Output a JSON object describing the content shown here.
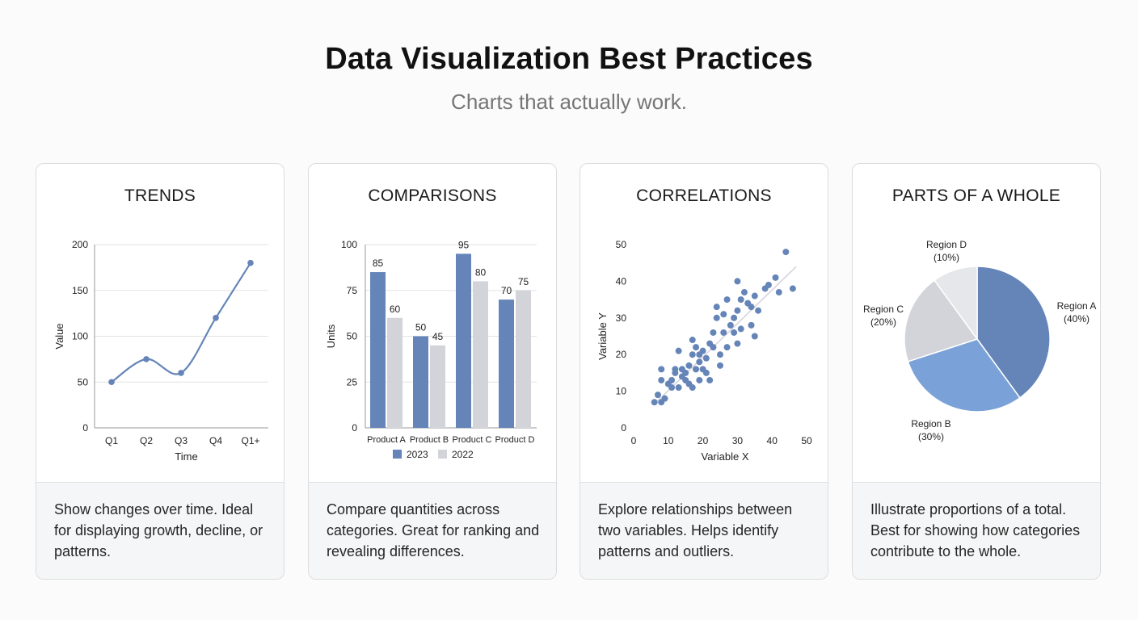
{
  "title": "Data Visualization Best Practices",
  "subtitle": "Charts that actually work.",
  "colors": {
    "primary": "#6585b9",
    "secondary": "#d2d4d9",
    "pie_a": "#6585b9",
    "pie_b": "#7ba2d8",
    "pie_c": "#d2d4d9",
    "pie_d": "#e6e7ea",
    "gridline": "#e3e3e3",
    "axis": "#9a9a9a"
  },
  "cards": [
    {
      "title": "TRENDS",
      "description": "Show changes over time. Ideal for displaying growth, decline, or patterns."
    },
    {
      "title": "COMPARISONS",
      "description": "Compare quantities across categories. Great for ranking and revealing differences."
    },
    {
      "title": "CORRELATIONS",
      "description": "Explore relationships between two variables. Helps identify patterns and outliers."
    },
    {
      "title": "PARTS OF A WHOLE",
      "description": "Illustrate proportions of a total. Best for showing how categories contribute to the whole."
    }
  ],
  "chart_data": [
    {
      "type": "line",
      "title": "",
      "categories": [
        "Q1",
        "Q2",
        "Q3",
        "Q4",
        "Q1+"
      ],
      "series": [
        {
          "values": [
            50,
            75,
            60,
            120,
            180
          ]
        }
      ],
      "xlabel": "Time",
      "ylabel": "Value",
      "ylim": [
        0,
        200
      ],
      "yticks": [
        0,
        50,
        100,
        150,
        200
      ],
      "grid": true
    },
    {
      "type": "bar",
      "title": "",
      "categories": [
        "Product A",
        "Product B",
        "Product C",
        "Product D"
      ],
      "series": [
        {
          "name": "2023",
          "values": [
            85,
            50,
            95,
            70
          ]
        },
        {
          "name": "2022",
          "values": [
            60,
            45,
            80,
            75
          ]
        }
      ],
      "xlabel": "",
      "ylabel": "Units",
      "ylim": [
        0,
        100
      ],
      "yticks": [
        0,
        25,
        50,
        75,
        100
      ],
      "grid": true,
      "legend": "bottom"
    },
    {
      "type": "scatter",
      "title": "",
      "xlabel": "Variable X",
      "ylabel": "Variable Y",
      "xlim": [
        0,
        50
      ],
      "ylim": [
        0,
        50
      ],
      "xticks": [
        0,
        10,
        20,
        30,
        40,
        50
      ],
      "yticks": [
        0,
        10,
        20,
        30,
        40,
        50
      ],
      "trendline": true,
      "grid": false,
      "points": [
        [
          6,
          7
        ],
        [
          7,
          9
        ],
        [
          8,
          7
        ],
        [
          9,
          8
        ],
        [
          8,
          13
        ],
        [
          10,
          12
        ],
        [
          11,
          13
        ],
        [
          11,
          11
        ],
        [
          12,
          15
        ],
        [
          13,
          11
        ],
        [
          12,
          16
        ],
        [
          14,
          14
        ],
        [
          14,
          16
        ],
        [
          15,
          15
        ],
        [
          13,
          21
        ],
        [
          16,
          17
        ],
        [
          16,
          12
        ],
        [
          17,
          11
        ],
        [
          17,
          20
        ],
        [
          18,
          22
        ],
        [
          18,
          16
        ],
        [
          19,
          20
        ],
        [
          19,
          18
        ],
        [
          20,
          21
        ],
        [
          21,
          19
        ],
        [
          21,
          15
        ],
        [
          22,
          23
        ],
        [
          22,
          13
        ],
        [
          23,
          22
        ],
        [
          23,
          26
        ],
        [
          24,
          30
        ],
        [
          24,
          33
        ],
        [
          25,
          20
        ],
        [
          26,
          26
        ],
        [
          26,
          31
        ],
        [
          27,
          22
        ],
        [
          28,
          28
        ],
        [
          29,
          30
        ],
        [
          30,
          23
        ],
        [
          30,
          32
        ],
        [
          30,
          40
        ],
        [
          31,
          35
        ],
        [
          31,
          27
        ],
        [
          32,
          37
        ],
        [
          33,
          34
        ],
        [
          34,
          33
        ],
        [
          34,
          28
        ],
        [
          35,
          36
        ],
        [
          35,
          25
        ],
        [
          36,
          32
        ],
        [
          38,
          38
        ],
        [
          39,
          39
        ],
        [
          41,
          41
        ],
        [
          42,
          37
        ],
        [
          44,
          48
        ],
        [
          46,
          38
        ],
        [
          8,
          16
        ],
        [
          15,
          13
        ],
        [
          19,
          13
        ],
        [
          25,
          17
        ],
        [
          27,
          35
        ],
        [
          20,
          16
        ],
        [
          17,
          24
        ],
        [
          29,
          26
        ]
      ]
    },
    {
      "type": "pie",
      "title": "",
      "slices": [
        {
          "label": "Region A",
          "pct_label": "(40%)",
          "value": 40
        },
        {
          "label": "Region B",
          "pct_label": "(30%)",
          "value": 30
        },
        {
          "label": "Region C",
          "pct_label": "(20%)",
          "value": 20
        },
        {
          "label": "Region D",
          "pct_label": "(10%)",
          "value": 10
        }
      ]
    }
  ]
}
